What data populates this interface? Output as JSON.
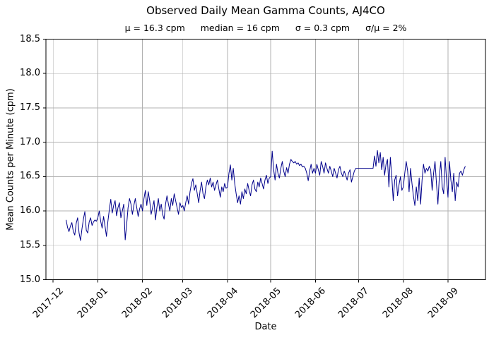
{
  "chart_data": {
    "type": "line",
    "title": "Observed Daily Mean Gamma Counts, AJ4CO",
    "stats": [
      "μ = 16.3 cpm",
      "median = 16 cpm",
      "σ = 0.3 cpm",
      "σ/μ = 2%"
    ],
    "xlabel": "Date",
    "ylabel": "Mean Counts per Minute (cpm)",
    "ylim": [
      15.0,
      18.5
    ],
    "yticks": [
      15.0,
      15.5,
      16.0,
      16.5,
      17.0,
      17.5,
      18.0,
      18.5
    ],
    "x_unit": "days since 2017-12-01",
    "xlim_days": [
      -5,
      300
    ],
    "xticks": [
      {
        "day": 0,
        "label": "2017-12"
      },
      {
        "day": 31,
        "label": "2018-01"
      },
      {
        "day": 62,
        "label": "2018-02"
      },
      {
        "day": 90,
        "label": "2018-03"
      },
      {
        "day": 121,
        "label": "2018-04"
      },
      {
        "day": 151,
        "label": "2018-05"
      },
      {
        "day": 182,
        "label": "2018-06"
      },
      {
        "day": 212,
        "label": "2018-07"
      },
      {
        "day": 243,
        "label": "2018-08"
      },
      {
        "day": 274,
        "label": "2018-09"
      }
    ],
    "grid": true,
    "legend": false,
    "line_color": "#00008b",
    "grid_color": "#b0b0b0",
    "spine_color": "#000000",
    "series": [
      {
        "name": "daily_mean_gamma_counts",
        "start_day": 9,
        "values": [
          15.87,
          15.76,
          15.7,
          15.78,
          15.83,
          15.7,
          15.65,
          15.82,
          15.9,
          15.68,
          15.57,
          15.74,
          15.88,
          15.99,
          15.72,
          15.68,
          15.84,
          15.9,
          15.79,
          15.84,
          15.87,
          15.85,
          15.9,
          16.0,
          15.85,
          15.75,
          15.92,
          15.78,
          15.63,
          15.85,
          16.02,
          16.17,
          15.97,
          16.08,
          16.15,
          15.93,
          16.05,
          16.12,
          15.9,
          16.0,
          16.1,
          15.58,
          15.8,
          16.05,
          16.18,
          16.1,
          15.95,
          16.08,
          16.18,
          16.05,
          15.92,
          16.03,
          16.1,
          16.0,
          16.18,
          16.3,
          16.08,
          16.28,
          16.15,
          15.95,
          16.05,
          16.15,
          15.87,
          16.05,
          16.18,
          16.0,
          16.1,
          15.95,
          15.88,
          16.1,
          16.22,
          16.1,
          16.0,
          16.18,
          16.08,
          16.25,
          16.15,
          16.05,
          15.95,
          16.12,
          16.05,
          16.08,
          16.0,
          16.12,
          16.22,
          16.1,
          16.28,
          16.4,
          16.47,
          16.3,
          16.38,
          16.25,
          16.12,
          16.3,
          16.42,
          16.25,
          16.18,
          16.35,
          16.45,
          16.38,
          16.48,
          16.35,
          16.42,
          16.3,
          16.38,
          16.45,
          16.32,
          16.2,
          16.35,
          16.28,
          16.4,
          16.33,
          16.35,
          16.55,
          16.67,
          16.45,
          16.62,
          16.4,
          16.25,
          16.12,
          16.22,
          16.1,
          16.28,
          16.18,
          16.32,
          16.25,
          16.4,
          16.3,
          16.22,
          16.38,
          16.45,
          16.32,
          16.28,
          16.42,
          16.35,
          16.48,
          16.4,
          16.32,
          16.45,
          16.52,
          16.4,
          16.48,
          16.5,
          16.87,
          16.6,
          16.45,
          16.68,
          16.55,
          16.48,
          16.62,
          16.72,
          16.58,
          16.5,
          16.63,
          16.55,
          16.68,
          16.75,
          16.72,
          16.7,
          16.72,
          16.68,
          16.7,
          16.66,
          16.68,
          16.64,
          16.65,
          16.62,
          16.55,
          16.44,
          16.58,
          16.68,
          16.55,
          16.62,
          16.55,
          16.68,
          16.6,
          16.52,
          16.72,
          16.65,
          16.55,
          16.7,
          16.62,
          16.55,
          16.65,
          16.58,
          16.5,
          16.62,
          16.55,
          16.48,
          16.6,
          16.65,
          16.55,
          16.5,
          16.58,
          16.52,
          16.45,
          16.55,
          16.6,
          16.42,
          16.5,
          16.58,
          16.62,
          16.62,
          16.62,
          16.62,
          16.62,
          16.62,
          16.62,
          16.62,
          16.62,
          16.62,
          16.62,
          16.62,
          16.62,
          16.8,
          16.65,
          16.88,
          16.7,
          16.85,
          16.6,
          16.78,
          16.52,
          16.68,
          16.75,
          16.35,
          16.78,
          16.5,
          16.15,
          16.45,
          16.52,
          16.22,
          16.38,
          16.5,
          16.3,
          16.35,
          16.55,
          16.72,
          16.58,
          16.28,
          16.62,
          16.4,
          16.22,
          16.08,
          16.35,
          16.15,
          16.48,
          16.1,
          16.45,
          16.68,
          16.55,
          16.62,
          16.58,
          16.65,
          16.6,
          16.3,
          16.55,
          16.72,
          16.4,
          16.1,
          16.5,
          16.72,
          16.35,
          16.25,
          16.78,
          16.45,
          16.2,
          16.72,
          16.45,
          16.28,
          16.55,
          16.15,
          16.42,
          16.35,
          16.55,
          16.58,
          16.52,
          16.6,
          16.65
        ]
      }
    ]
  }
}
